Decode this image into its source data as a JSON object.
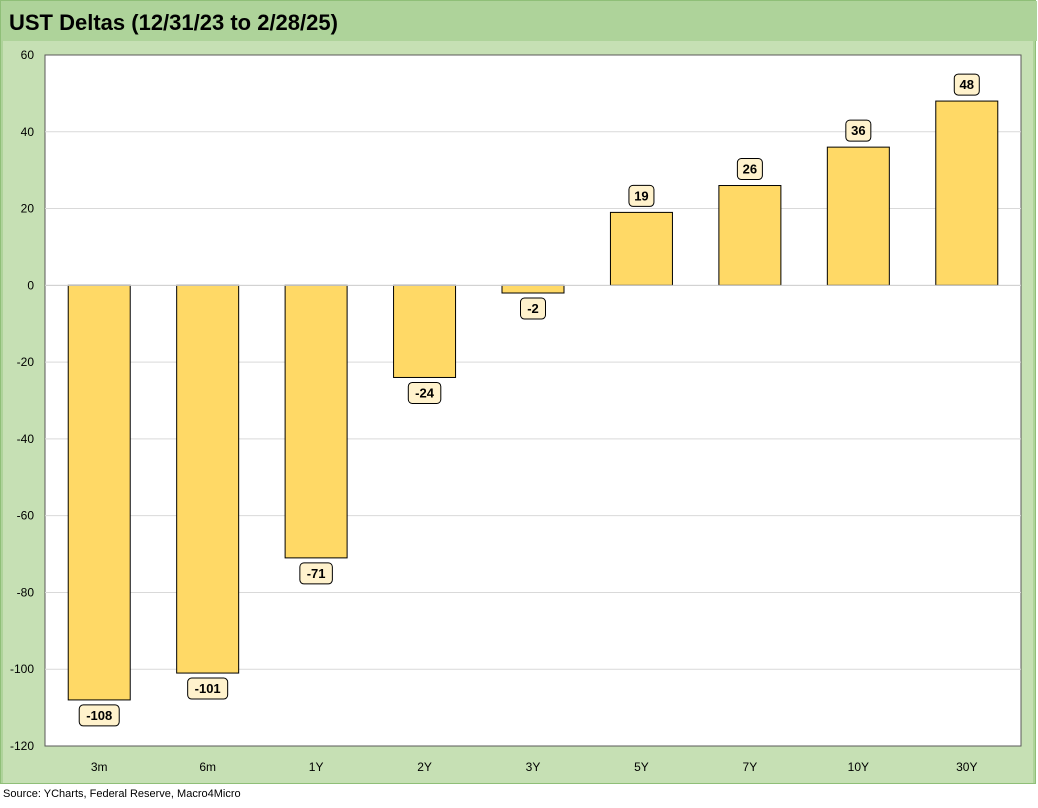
{
  "title": "UST Deltas (12/31/23 to 2/28/25)",
  "source": "Source: YCharts, Federal Reserve, Macro4Micro",
  "colors": {
    "frame": "#aed39a",
    "band": "#c6e0b4",
    "bar_fill": "#ffd966",
    "bar_stroke": "#000000",
    "label_fill": "#fff2cc",
    "grid": "#d9d9d9"
  },
  "chart_data": {
    "type": "bar",
    "title": "UST Deltas (12/31/23 to 2/28/25)",
    "xlabel": "",
    "ylabel": "",
    "categories": [
      "3m",
      "6m",
      "1Y",
      "2Y",
      "3Y",
      "5Y",
      "7Y",
      "10Y",
      "30Y"
    ],
    "values": [
      -108,
      -101,
      -71,
      -24,
      -2,
      19,
      26,
      36,
      48
    ],
    "ylim": [
      -120,
      60
    ],
    "yticks": [
      60,
      40,
      20,
      0,
      -20,
      -40,
      -60,
      -80,
      -100,
      -120
    ],
    "grid": true,
    "legend": "none",
    "data_labels": true
  }
}
